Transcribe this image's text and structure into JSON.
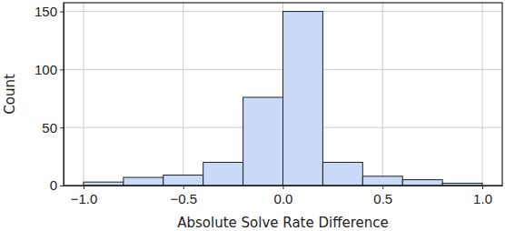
{
  "chart_data": {
    "type": "histogram",
    "x_label": "Absolute Solve Rate Difference",
    "y_label": "Count",
    "bins": [
      -1.0,
      -0.8,
      -0.6,
      -0.4,
      -0.2,
      0.0,
      0.2,
      0.4,
      0.6,
      0.8,
      1.0
    ],
    "values": [
      3,
      7,
      9,
      20,
      76,
      150,
      20,
      8,
      5,
      2
    ],
    "color": "#c9daf8",
    "xlim": [
      -1.1,
      1.1
    ],
    "xticks": [
      {
        "value": -1.0,
        "label": "−1.0"
      },
      {
        "value": -0.5,
        "label": "−0.5"
      },
      {
        "value": 0.0,
        "label": "0.0"
      },
      {
        "value": 0.5,
        "label": "0.5"
      },
      {
        "value": 1.0,
        "label": "1.0"
      }
    ],
    "ylim": [
      0,
      157.5
    ],
    "yticks": [
      0,
      50,
      100,
      150
    ],
    "grid": true
  }
}
